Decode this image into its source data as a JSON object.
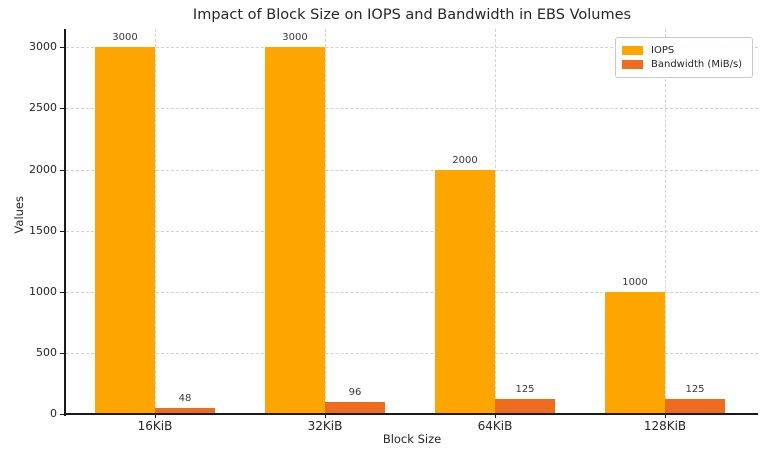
{
  "chart_data": {
    "type": "bar",
    "title": "Impact of Block Size on IOPS and Bandwidth in EBS Volumes",
    "xlabel": "Block Size",
    "ylabel": "Values",
    "categories": [
      "16KiB",
      "32KiB",
      "64KiB",
      "128KiB"
    ],
    "series": [
      {
        "name": "IOPS",
        "color": "#FFA500",
        "values": [
          3000,
          3000,
          2000,
          1000
        ]
      },
      {
        "name": "Bandwidth (MiB/s)",
        "color": "#EE6C1F",
        "values": [
          48,
          96,
          125,
          125
        ]
      }
    ],
    "yticks": [
      0,
      500,
      1000,
      1500,
      2000,
      2500,
      3000
    ],
    "ylim": [
      0,
      3150
    ],
    "grid": true,
    "grid_style": "dashed",
    "legend_position": "upper right",
    "bar_value_labels": true
  },
  "colors": {
    "iops": "#FFA500",
    "bandwidth": "#EE6C1F",
    "grid": "#d2d2d2",
    "spine": "#1a1a1a",
    "text": "#262626"
  }
}
